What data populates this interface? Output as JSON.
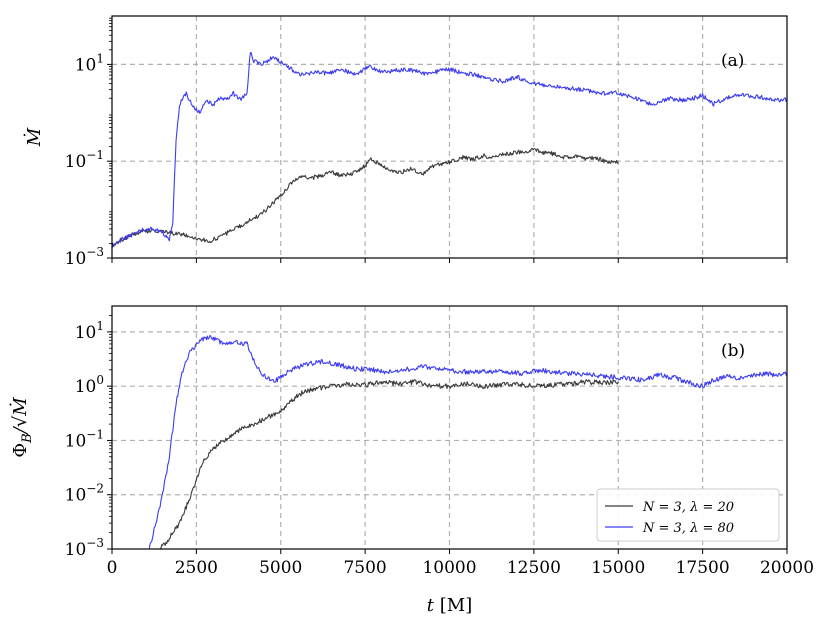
{
  "chart_data": [
    {
      "type": "line",
      "panel_label": "(a)",
      "xlabel": "",
      "ylabel": "Ṁ",
      "yscale": "log",
      "xlim": [
        0,
        20000
      ],
      "ylim": [
        0.001,
        100
      ],
      "xticks": [
        0,
        2500,
        5000,
        7500,
        10000,
        12500,
        15000,
        17500,
        20000
      ],
      "yticks": [
        {
          "value": 0.001,
          "base": "10",
          "exp": "−3"
        },
        {
          "value": 0.1,
          "base": "10",
          "exp": "−1"
        },
        {
          "value": 10,
          "base": "10",
          "exp": "1"
        }
      ],
      "grid": true,
      "series": [
        {
          "name": "N = 3, λ = 20",
          "color": "#3a3a3a",
          "x": [
            0,
            300,
            600,
            900,
            1200,
            1500,
            1800,
            2100,
            2400,
            2700,
            2900,
            3200,
            3500,
            3800,
            4100,
            4400,
            4700,
            5000,
            5300,
            5600,
            5900,
            6200,
            6500,
            6800,
            7100,
            7400,
            7700,
            8000,
            8300,
            8600,
            8900,
            9200,
            9500,
            9800,
            10100,
            10400,
            10700,
            11000,
            11300,
            11600,
            11900,
            12200,
            12500,
            12800,
            13100,
            13400,
            13700,
            14000,
            14300,
            14600,
            15000
          ],
          "y": [
            0.0018,
            0.0024,
            0.003,
            0.0035,
            0.0037,
            0.0035,
            0.0032,
            0.003,
            0.0027,
            0.0024,
            0.0022,
            0.0028,
            0.0035,
            0.0045,
            0.006,
            0.008,
            0.012,
            0.02,
            0.035,
            0.05,
            0.045,
            0.05,
            0.06,
            0.05,
            0.055,
            0.07,
            0.11,
            0.08,
            0.065,
            0.06,
            0.07,
            0.055,
            0.08,
            0.09,
            0.1,
            0.12,
            0.11,
            0.13,
            0.12,
            0.14,
            0.15,
            0.16,
            0.17,
            0.15,
            0.14,
            0.12,
            0.13,
            0.11,
            0.12,
            0.1,
            0.095
          ]
        },
        {
          "name": "N = 3, λ = 80",
          "color": "#3c3cf0",
          "x": [
            0,
            300,
            600,
            900,
            1200,
            1500,
            1700,
            1800,
            1900,
            2000,
            2200,
            2400,
            2600,
            2800,
            3000,
            3200,
            3400,
            3600,
            3800,
            4000,
            4100,
            4200,
            4400,
            4600,
            4800,
            5000,
            5300,
            5600,
            6000,
            6400,
            6800,
            7200,
            7600,
            8000,
            8400,
            8800,
            9200,
            9600,
            10000,
            10400,
            10800,
            11200,
            11600,
            12000,
            12500,
            13000,
            13500,
            14000,
            14500,
            15000,
            15500,
            16000,
            16500,
            17000,
            17500,
            17800,
            18200,
            18600,
            19000,
            19400,
            19700,
            20000
          ],
          "y": [
            0.0017,
            0.0025,
            0.003,
            0.0038,
            0.004,
            0.0033,
            0.0025,
            0.005,
            0.3,
            1.5,
            2.5,
            1.3,
            1.0,
            1.8,
            1.5,
            2.0,
            1.8,
            2.5,
            1.9,
            2.6,
            18,
            12,
            10,
            12,
            14,
            11,
            8,
            6,
            7,
            6.5,
            8,
            6,
            9,
            7,
            7.5,
            8,
            6.5,
            7,
            8,
            6.5,
            6,
            5,
            4.5,
            5.5,
            4,
            3.5,
            3.2,
            3.0,
            2.5,
            2.6,
            2.0,
            1.5,
            2.0,
            1.8,
            2.3,
            1.5,
            2.0,
            2.4,
            2.2,
            2.0,
            1.8,
            1.9
          ]
        }
      ]
    },
    {
      "type": "line",
      "panel_label": "(b)",
      "xlabel": "t [M]",
      "ylabel": "Φ_B/√Ṁ",
      "yscale": "log",
      "xlim": [
        0,
        20000
      ],
      "ylim": [
        0.001,
        30
      ],
      "xticks": [
        0,
        2500,
        5000,
        7500,
        10000,
        12500,
        15000,
        17500,
        20000
      ],
      "yticks": [
        {
          "value": 0.001,
          "base": "10",
          "exp": "−3"
        },
        {
          "value": 0.01,
          "base": "10",
          "exp": "−2"
        },
        {
          "value": 0.1,
          "base": "10",
          "exp": "−1"
        },
        {
          "value": 1,
          "base": "10",
          "exp": "0"
        },
        {
          "value": 10,
          "base": "10",
          "exp": "1"
        }
      ],
      "grid": true,
      "legend": {
        "position": "bottom-right",
        "entries": [
          {
            "label": "N = 3, λ = 20",
            "color": "#3a3a3a"
          },
          {
            "label": "N = 3, λ = 80",
            "color": "#3c3cf0"
          }
        ]
      },
      "series": [
        {
          "name": "N = 3, λ = 20",
          "color": "#3a3a3a",
          "x": [
            1400,
            1600,
            1800,
            2000,
            2200,
            2400,
            2600,
            2800,
            3000,
            3300,
            3600,
            3900,
            4200,
            4500,
            4800,
            5100,
            5400,
            5700,
            6000,
            6500,
            7000,
            7500,
            8000,
            8500,
            9000,
            9500,
            10000,
            10500,
            11000,
            11500,
            12000,
            12500,
            13000,
            13500,
            14000,
            14500,
            15000
          ],
          "y": [
            0.001,
            0.0013,
            0.002,
            0.003,
            0.006,
            0.012,
            0.03,
            0.05,
            0.07,
            0.1,
            0.13,
            0.17,
            0.2,
            0.25,
            0.3,
            0.4,
            0.6,
            0.8,
            0.9,
            1.0,
            1.1,
            1.05,
            1.2,
            1.1,
            1.2,
            1.0,
            1.0,
            1.1,
            1.0,
            1.05,
            1.1,
            1.0,
            1.05,
            1.1,
            1.2,
            1.15,
            1.2
          ]
        },
        {
          "name": "N = 3, λ = 80",
          "color": "#3c3cf0",
          "x": [
            1100,
            1300,
            1500,
            1700,
            1900,
            2100,
            2300,
            2500,
            2700,
            2900,
            3100,
            3400,
            3700,
            4000,
            4200,
            4400,
            4600,
            4800,
            5000,
            5300,
            5700,
            6200,
            6700,
            7200,
            7700,
            8200,
            8700,
            9200,
            9700,
            10200,
            10700,
            11200,
            11700,
            12200,
            12700,
            13200,
            13700,
            14200,
            14700,
            15200,
            15700,
            16200,
            16700,
            17200,
            17500,
            17800,
            18200,
            18600,
            19000,
            19400,
            19700,
            20000
          ],
          "y": [
            0.001,
            0.003,
            0.01,
            0.05,
            0.5,
            2.0,
            4.0,
            6.0,
            7.5,
            8.0,
            7.0,
            6.0,
            6.5,
            6.0,
            3.0,
            1.8,
            1.4,
            1.2,
            1.5,
            2.0,
            2.5,
            2.8,
            2.5,
            2.1,
            2.0,
            1.8,
            2.0,
            2.3,
            2.1,
            1.9,
            1.8,
            1.9,
            1.8,
            1.7,
            2.0,
            1.8,
            1.7,
            1.6,
            1.5,
            1.4,
            1.3,
            1.6,
            1.4,
            1.1,
            1.0,
            1.3,
            1.5,
            1.4,
            1.6,
            1.7,
            1.6,
            1.7
          ]
        }
      ]
    }
  ]
}
